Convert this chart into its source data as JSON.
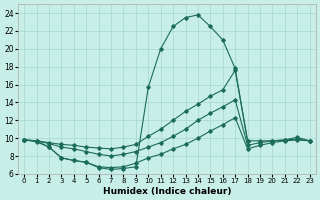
{
  "background_color": "#c8eee8",
  "grid_color": "#a8d8cc",
  "line_color": "#1a6b5a",
  "xlim": [
    -0.5,
    23.5
  ],
  "ylim": [
    6,
    25
  ],
  "xticks": [
    0,
    1,
    2,
    3,
    4,
    5,
    6,
    7,
    8,
    9,
    10,
    11,
    12,
    13,
    14,
    15,
    16,
    17,
    18,
    19,
    20,
    21,
    22,
    23
  ],
  "yticks": [
    6,
    8,
    10,
    12,
    14,
    16,
    18,
    20,
    22,
    24
  ],
  "xlabel": "Humidex (Indice chaleur)",
  "line1_x": [
    0,
    1,
    2,
    3,
    4,
    5,
    6,
    7,
    8,
    9,
    10,
    11,
    12,
    13,
    14,
    15,
    16,
    17,
    18
  ],
  "line1_y": [
    9.8,
    9.7,
    9.0,
    7.8,
    7.5,
    7.3,
    6.7,
    6.5,
    6.6,
    6.8,
    15.7,
    20.0,
    22.5,
    23.5,
    23.8,
    22.5,
    21.0,
    17.8,
    9.7
  ],
  "line2_x": [
    0,
    1,
    2,
    3,
    4,
    5,
    6,
    7,
    8,
    9,
    10,
    11,
    12,
    13,
    14,
    15,
    16,
    17,
    18,
    19,
    20,
    21,
    22,
    23
  ],
  "line2_y": [
    9.8,
    9.7,
    9.5,
    9.3,
    9.2,
    9.0,
    8.9,
    8.8,
    9.0,
    9.3,
    10.2,
    11.0,
    12.0,
    13.0,
    13.8,
    14.7,
    15.4,
    17.6,
    9.7,
    9.7,
    9.7,
    9.8,
    10.1,
    9.7
  ],
  "line3_x": [
    0,
    1,
    2,
    3,
    4,
    5,
    6,
    7,
    8,
    9,
    10,
    11,
    12,
    13,
    14,
    15,
    16,
    17,
    18,
    19,
    20,
    21,
    22,
    23
  ],
  "line3_y": [
    9.8,
    9.7,
    9.4,
    9.0,
    8.8,
    8.5,
    8.2,
    8.0,
    8.2,
    8.5,
    9.0,
    9.5,
    10.2,
    11.0,
    12.0,
    12.8,
    13.5,
    14.3,
    9.2,
    9.5,
    9.7,
    9.8,
    9.9,
    9.7
  ],
  "line4_x": [
    0,
    1,
    2,
    3,
    4,
    5,
    6,
    7,
    8,
    9,
    10,
    11,
    12,
    13,
    14,
    15,
    16,
    17,
    18,
    19,
    20,
    21,
    22,
    23
  ],
  "line4_y": [
    9.8,
    9.6,
    9.0,
    7.8,
    7.5,
    7.3,
    6.8,
    6.7,
    6.8,
    7.2,
    7.8,
    8.2,
    8.8,
    9.3,
    10.0,
    10.8,
    11.5,
    12.3,
    8.8,
    9.2,
    9.5,
    9.7,
    9.8,
    9.7
  ]
}
